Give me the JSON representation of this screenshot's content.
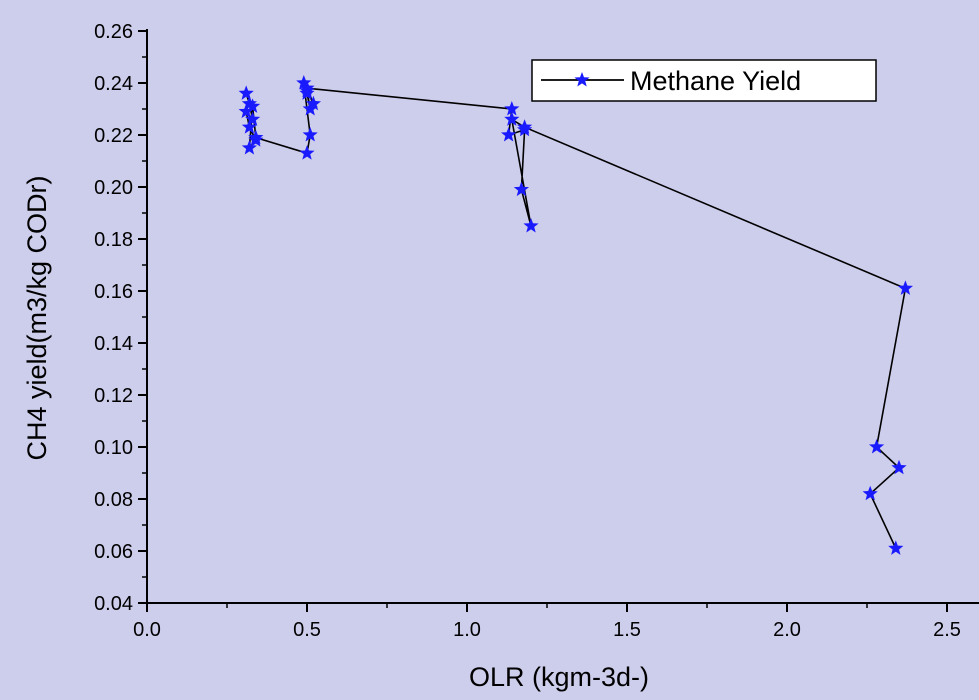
{
  "chart_data": {
    "type": "line",
    "xlabel": "OLR (kgm-3d-)",
    "ylabel": "CH4 yield(m3/kg CODr)",
    "xlim": [
      0.0,
      2.6
    ],
    "ylim": [
      0.04,
      0.26
    ],
    "x_ticks": [
      0.0,
      0.5,
      1.0,
      1.5,
      2.0,
      2.5
    ],
    "y_ticks": [
      0.04,
      0.06,
      0.08,
      0.1,
      0.12,
      0.14,
      0.16,
      0.18,
      0.2,
      0.22,
      0.24,
      0.26
    ],
    "x_tick_labels": [
      "0.0",
      "0.5",
      "1.0",
      "1.5",
      "2.0",
      "2.5"
    ],
    "y_tick_labels": [
      "0.04",
      "0.06",
      "0.08",
      "0.10",
      "0.12",
      "0.14",
      "0.16",
      "0.18",
      "0.20",
      "0.22",
      "0.24",
      "0.26"
    ],
    "grid": false,
    "legend_position": "top-right",
    "series": [
      {
        "name": "Methane Yield",
        "line_color": "#000000",
        "marker_color": "#1a1aff",
        "marker": "star",
        "x": [
          0.31,
          0.32,
          0.33,
          0.31,
          0.32,
          0.34,
          0.32,
          0.33,
          0.34,
          0.5,
          0.51,
          0.49,
          0.5,
          0.51,
          0.5,
          0.52,
          0.5,
          1.14,
          1.13,
          1.18,
          1.17,
          1.2,
          1.14,
          1.18,
          2.37,
          2.28,
          2.35,
          2.26,
          2.34
        ],
        "y": [
          0.236,
          0.232,
          0.226,
          0.229,
          0.223,
          0.218,
          0.215,
          0.231,
          0.219,
          0.213,
          0.22,
          0.24,
          0.236,
          0.23,
          0.237,
          0.232,
          0.238,
          0.23,
          0.22,
          0.222,
          0.199,
          0.185,
          0.226,
          0.223,
          0.161,
          0.1,
          0.092,
          0.082,
          0.061
        ]
      }
    ]
  }
}
